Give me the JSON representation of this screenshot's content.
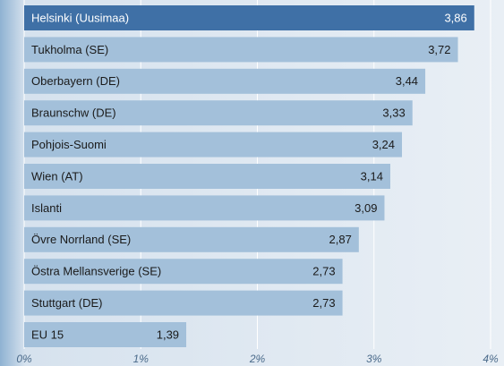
{
  "chart_data": {
    "type": "bar",
    "orientation": "horizontal",
    "categories": [
      "Helsinki (Uusimaa)",
      "Tukholma (SE)",
      "Oberbayern (DE)",
      "Braunschw (DE)",
      "Pohjois-Suomi",
      "Wien (AT)",
      "Islanti",
      "Övre Norrland (SE)",
      "Östra Mellansverige (SE)",
      "Stuttgart (DE)",
      "EU 15"
    ],
    "values": [
      3.86,
      3.72,
      3.44,
      3.33,
      3.24,
      3.14,
      3.09,
      2.87,
      2.73,
      2.73,
      1.39
    ],
    "value_labels": [
      "3,86",
      "3,72",
      "3,44",
      "3,33",
      "3,24",
      "3,14",
      "3,09",
      "2,87",
      "2,73",
      "2,73",
      "1,39"
    ],
    "colors": [
      "#3f70a6",
      "#a3c0da",
      "#a3c0da",
      "#a3c0da",
      "#a3c0da",
      "#a3c0da",
      "#a3c0da",
      "#a3c0da",
      "#a3c0da",
      "#a3c0da",
      "#a3c0da"
    ],
    "xlim": [
      0,
      4
    ],
    "xticks": [
      {
        "value": 0,
        "label": "0%"
      },
      {
        "value": 1,
        "label": "1%"
      },
      {
        "value": 2,
        "label": "2%"
      },
      {
        "value": 3,
        "label": "3%"
      },
      {
        "value": 4,
        "label": "4%"
      }
    ],
    "grid": true
  }
}
